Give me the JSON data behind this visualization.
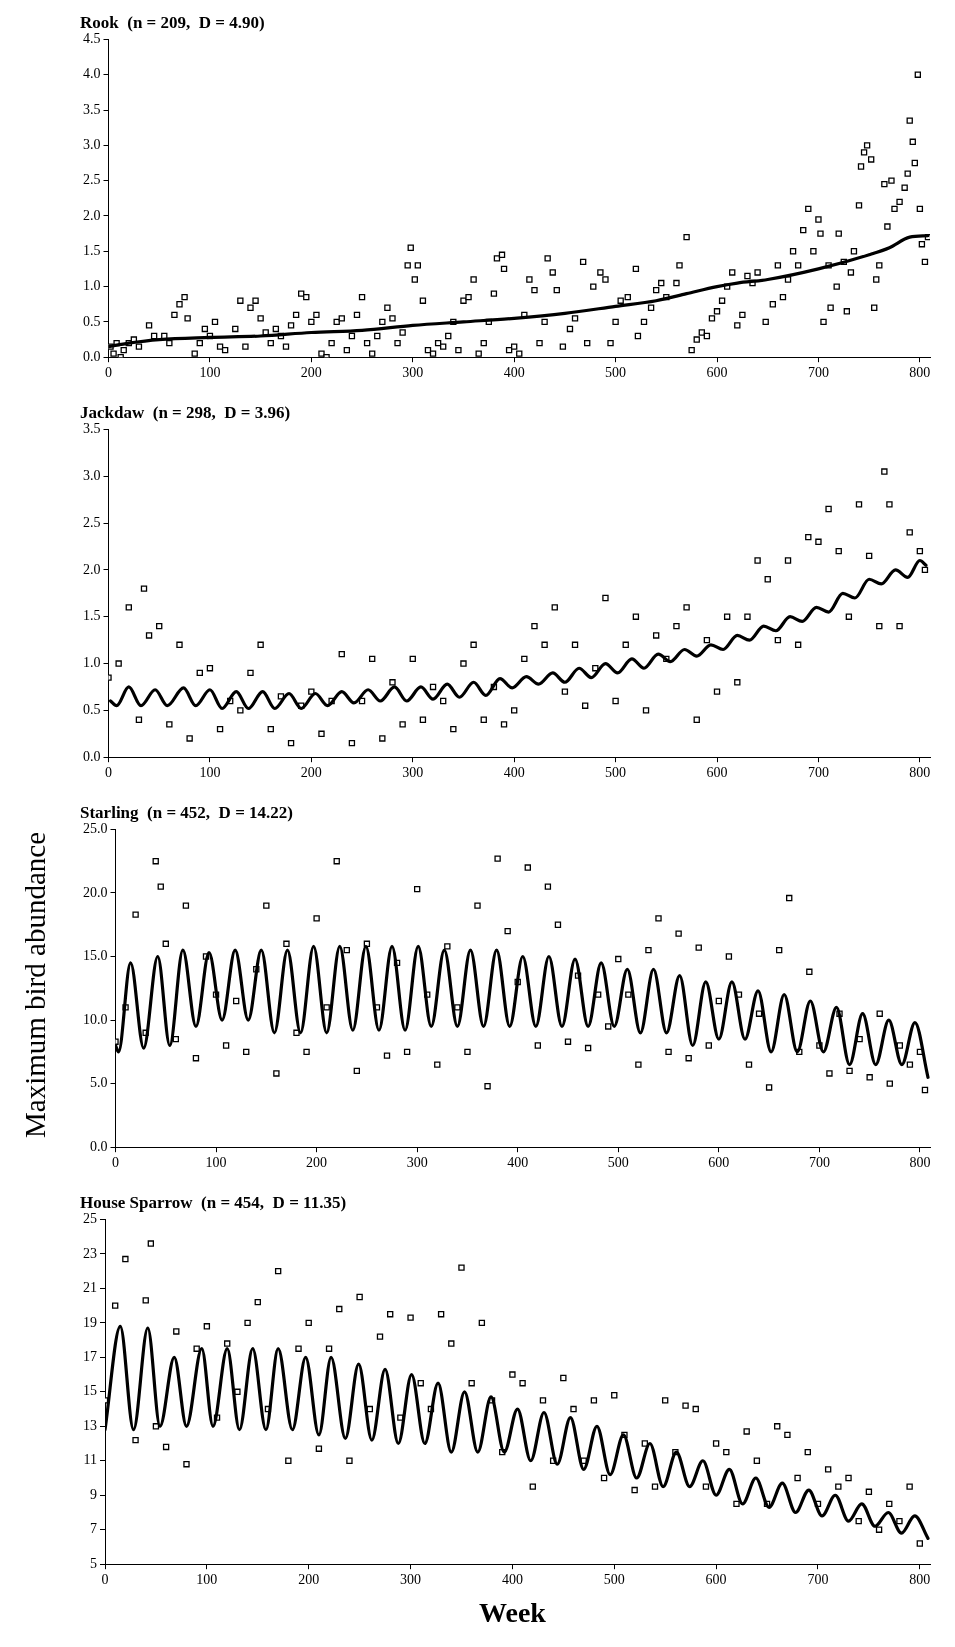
{
  "chart_data": [
    {
      "type": "scatter",
      "title": "Rook  (n = 209,  D = 4.90)",
      "marker": "square",
      "grid": false,
      "legend": false,
      "xlim": [
        0,
        810
      ],
      "xticks": [
        0,
        100,
        200,
        300,
        400,
        500,
        600,
        700,
        800
      ],
      "ylim": [
        0,
        4.5
      ],
      "yticks": [
        {
          "value": 0,
          "label": "0.0"
        },
        {
          "value": 0.5,
          "label": "0.5"
        },
        {
          "value": 1,
          "label": "1.0"
        },
        {
          "value": 1.5,
          "label": "1.5"
        },
        {
          "value": 2,
          "label": "2.0"
        },
        {
          "value": 2.5,
          "label": "2.5"
        },
        {
          "value": 3,
          "label": "3.0"
        },
        {
          "value": 3.5,
          "label": "3.5"
        },
        {
          "value": 4,
          "label": "4.0"
        },
        {
          "value": 4.5,
          "label": "4.5"
        }
      ],
      "series": [
        {
          "type": "scatter",
          "color": "#000000",
          "x": [
            2,
            5,
            8,
            12,
            15,
            20,
            25,
            30,
            40,
            45,
            55,
            60,
            65,
            70,
            75,
            78,
            85,
            90,
            95,
            100,
            105,
            110,
            115,
            125,
            130,
            135,
            140,
            145,
            150,
            155,
            160,
            165,
            170,
            175,
            180,
            185,
            190,
            195,
            200,
            205,
            210,
            215,
            220,
            225,
            230,
            235,
            240,
            245,
            250,
            255,
            260,
            265,
            270,
            275,
            280,
            285,
            290,
            295,
            298,
            302,
            305,
            310,
            315,
            320,
            325,
            330,
            335,
            340,
            345,
            350,
            355,
            360,
            365,
            370,
            375,
            380,
            383,
            388,
            390,
            395,
            400,
            405,
            410,
            415,
            420,
            425,
            430,
            433,
            438,
            442,
            448,
            455,
            460,
            468,
            472,
            478,
            485,
            490,
            495,
            500,
            505,
            512,
            520,
            522,
            528,
            535,
            540,
            545,
            550,
            560,
            563,
            570,
            575,
            580,
            585,
            590,
            595,
            600,
            605,
            610,
            615,
            620,
            625,
            630,
            635,
            640,
            648,
            655,
            660,
            665,
            670,
            675,
            680,
            685,
            690,
            695,
            700,
            702,
            705,
            710,
            712,
            718,
            720,
            725,
            728,
            732,
            735,
            740,
            742,
            745,
            748,
            752,
            755,
            757,
            760,
            765,
            768,
            772,
            775,
            780,
            785,
            788,
            790,
            793,
            795,
            798,
            800,
            802,
            805,
            808
          ],
          "values": [
            0.15,
            0.05,
            0.2,
            0.0,
            0.1,
            0.2,
            0.25,
            0.15,
            0.45,
            0.3,
            0.3,
            0.2,
            0.6,
            0.75,
            0.85,
            0.55,
            0.05,
            0.2,
            0.4,
            0.3,
            0.5,
            0.15,
            0.1,
            0.4,
            0.8,
            0.15,
            0.7,
            0.8,
            0.55,
            0.35,
            0.2,
            0.4,
            0.3,
            0.15,
            0.45,
            0.6,
            0.9,
            0.85,
            0.5,
            0.6,
            0.05,
            0.0,
            0.2,
            0.5,
            0.55,
            0.1,
            0.3,
            0.6,
            0.85,
            0.2,
            0.05,
            0.3,
            0.5,
            0.7,
            0.55,
            0.2,
            0.35,
            1.3,
            1.55,
            1.1,
            1.3,
            0.8,
            0.1,
            0.05,
            0.2,
            0.15,
            0.3,
            0.5,
            0.1,
            0.8,
            0.85,
            1.1,
            0.05,
            0.2,
            0.5,
            0.9,
            1.4,
            1.45,
            1.25,
            0.1,
            0.15,
            0.05,
            0.6,
            1.1,
            0.95,
            0.2,
            0.5,
            1.4,
            1.2,
            0.95,
            0.15,
            0.4,
            0.55,
            1.35,
            0.2,
            1.0,
            1.2,
            1.1,
            0.2,
            0.5,
            0.8,
            0.85,
            1.25,
            0.3,
            0.5,
            0.7,
            0.95,
            1.05,
            0.85,
            1.05,
            1.3,
            1.7,
            0.1,
            0.25,
            0.35,
            0.3,
            0.55,
            0.65,
            0.8,
            1.0,
            1.2,
            0.45,
            0.6,
            1.15,
            1.05,
            1.2,
            0.5,
            0.75,
            1.3,
            0.85,
            1.1,
            1.5,
            1.3,
            1.8,
            2.1,
            1.5,
            1.95,
            1.75,
            0.5,
            1.3,
            0.7,
            1.0,
            1.75,
            1.35,
            0.65,
            1.2,
            1.5,
            2.15,
            2.7,
            2.9,
            3.0,
            2.8,
            0.7,
            1.1,
            1.3,
            2.45,
            1.85,
            2.5,
            2.1,
            2.2,
            2.4,
            2.6,
            3.35,
            3.05,
            2.75,
            4.0,
            2.1,
            1.6,
            1.35,
            1.7
          ]
        },
        {
          "type": "line",
          "marker": "none",
          "color": "#000000",
          "x": [
            0,
            20,
            50,
            100,
            150,
            200,
            250,
            300,
            350,
            400,
            450,
            500,
            540,
            570,
            600,
            620,
            650,
            700,
            750,
            770,
            790,
            808
          ],
          "values": [
            0.15,
            0.2,
            0.25,
            0.28,
            0.3,
            0.35,
            0.38,
            0.45,
            0.5,
            0.55,
            0.62,
            0.72,
            0.8,
            0.9,
            1.0,
            1.05,
            1.1,
            1.25,
            1.45,
            1.55,
            1.7,
            1.72
          ]
        }
      ]
    },
    {
      "type": "scatter",
      "title": "Jackdaw  (n = 298,  D = 3.96)",
      "marker": "square",
      "grid": false,
      "legend": false,
      "xlim": [
        0,
        810
      ],
      "xticks": [
        0,
        100,
        200,
        300,
        400,
        500,
        600,
        700,
        800
      ],
      "ylim": [
        0,
        3.5
      ],
      "yticks": [
        {
          "value": 0,
          "label": "0.0"
        },
        {
          "value": 0.5,
          "label": "0.5"
        },
        {
          "value": 1,
          "label": "1.0"
        },
        {
          "value": 1.5,
          "label": "1.5"
        },
        {
          "value": 2,
          "label": "2.0"
        },
        {
          "value": 2.5,
          "label": "2.5"
        },
        {
          "value": 3,
          "label": "3.0"
        },
        {
          "value": 3.5,
          "label": "3.5"
        }
      ],
      "series": [
        {
          "type": "scatter",
          "color": "#000000",
          "x": [
            0,
            10,
            20,
            30,
            40,
            50,
            60,
            70,
            80,
            90,
            100,
            110,
            120,
            130,
            140,
            150,
            160,
            170,
            180,
            190,
            200,
            210,
            220,
            230,
            240,
            250,
            260,
            270,
            280,
            290,
            300,
            310,
            320,
            330,
            340,
            350,
            360,
            370,
            380,
            390,
            400,
            410,
            420,
            430,
            440,
            450,
            460,
            470,
            480,
            490,
            500,
            510,
            520,
            530,
            540,
            550,
            560,
            570,
            580,
            590,
            600,
            610,
            620,
            630,
            640,
            650,
            660,
            670,
            680,
            690,
            700,
            710,
            720,
            730,
            740,
            750,
            760,
            770,
            780,
            790,
            800,
            765,
            35,
            805
          ],
          "values": [
            0.85,
            1.0,
            1.6,
            0.4,
            1.3,
            1.4,
            0.35,
            1.2,
            0.2,
            0.9,
            0.95,
            0.3,
            0.6,
            0.5,
            0.9,
            1.2,
            0.3,
            0.65,
            0.15,
            0.55,
            0.7,
            0.25,
            0.6,
            1.1,
            0.15,
            0.6,
            1.05,
            0.2,
            0.8,
            0.35,
            1.05,
            0.4,
            0.75,
            0.6,
            0.3,
            1.0,
            1.2,
            0.4,
            0.75,
            0.35,
            0.5,
            1.05,
            1.4,
            1.2,
            1.6,
            0.7,
            1.2,
            0.55,
            0.95,
            1.7,
            0.6,
            1.2,
            1.5,
            0.5,
            1.3,
            1.05,
            1.4,
            1.6,
            0.4,
            1.25,
            0.7,
            1.5,
            0.8,
            1.5,
            2.1,
            1.9,
            1.25,
            2.1,
            1.2,
            2.35,
            2.3,
            2.65,
            2.2,
            1.5,
            2.7,
            2.15,
            1.4,
            2.7,
            1.4,
            2.4,
            2.2,
            3.05,
            1.8,
            2.0
          ]
        },
        {
          "type": "line",
          "marker": "none",
          "color": "#000000",
          "x": [
            2,
            8,
            20,
            32,
            46,
            58,
            74,
            86,
            100,
            112,
            126,
            138,
            152,
            164,
            178,
            190,
            204,
            216,
            230,
            242,
            256,
            268,
            282,
            294,
            308,
            320,
            334,
            346,
            360,
            372,
            386,
            398,
            412,
            424,
            438,
            450,
            464,
            476,
            490,
            502,
            516,
            528,
            542,
            554,
            568,
            580,
            594,
            606,
            620,
            632,
            646,
            658,
            672,
            684,
            698,
            710,
            724,
            736,
            750,
            762,
            776,
            788,
            800,
            806
          ],
          "values": [
            0.6,
            0.55,
            0.75,
            0.55,
            0.72,
            0.55,
            0.74,
            0.55,
            0.72,
            0.52,
            0.7,
            0.52,
            0.7,
            0.52,
            0.68,
            0.52,
            0.68,
            0.55,
            0.7,
            0.58,
            0.72,
            0.6,
            0.75,
            0.6,
            0.75,
            0.62,
            0.78,
            0.64,
            0.8,
            0.66,
            0.84,
            0.74,
            0.86,
            0.78,
            0.9,
            0.8,
            0.95,
            0.85,
            1.0,
            0.9,
            1.05,
            0.95,
            1.1,
            1.02,
            1.15,
            1.08,
            1.2,
            1.15,
            1.3,
            1.25,
            1.4,
            1.35,
            1.5,
            1.45,
            1.6,
            1.55,
            1.75,
            1.7,
            1.9,
            1.85,
            2.0,
            1.92,
            2.1,
            2.05
          ]
        }
      ]
    },
    {
      "type": "scatter",
      "title": "Starling  (n = 452,  D = 14.22)",
      "ylabel": "Maximum bird abundance",
      "marker": "square",
      "grid": false,
      "legend": false,
      "xlim": [
        0,
        810
      ],
      "xticks": [
        0,
        100,
        200,
        300,
        400,
        500,
        600,
        700,
        800
      ],
      "ylim": [
        0,
        25
      ],
      "yticks": [
        {
          "value": 0,
          "label": "0.0"
        },
        {
          "value": 5,
          "label": "5.0"
        },
        {
          "value": 10,
          "label": "10.0"
        },
        {
          "value": 15,
          "label": "15.0"
        },
        {
          "value": 20,
          "label": "20.0"
        },
        {
          "value": 25,
          "label": "25.0"
        }
      ],
      "series": [
        {
          "type": "scatter",
          "color": "#000000",
          "x": [
            0,
            10,
            20,
            30,
            40,
            50,
            60,
            70,
            80,
            90,
            100,
            110,
            120,
            130,
            140,
            150,
            160,
            170,
            180,
            190,
            200,
            210,
            220,
            230,
            240,
            250,
            260,
            270,
            280,
            290,
            300,
            310,
            320,
            330,
            340,
            350,
            360,
            370,
            380,
            390,
            400,
            410,
            420,
            430,
            440,
            450,
            460,
            470,
            480,
            490,
            500,
            510,
            520,
            530,
            540,
            550,
            560,
            570,
            580,
            590,
            600,
            610,
            620,
            630,
            640,
            650,
            660,
            670,
            680,
            690,
            700,
            710,
            720,
            730,
            740,
            750,
            760,
            770,
            780,
            790,
            800,
            805,
            45
          ],
          "values": [
            8.3,
            11,
            18.3,
            9,
            22.5,
            16,
            8.5,
            19,
            7,
            15,
            12,
            8,
            11.5,
            7.5,
            14,
            19,
            5.8,
            16,
            9,
            7.5,
            18,
            11,
            22.5,
            15.5,
            6,
            16,
            11,
            7.2,
            14.5,
            7.5,
            20.3,
            12,
            6.5,
            15.8,
            11,
            7.5,
            19,
            4.8,
            22.7,
            17,
            13,
            22,
            8,
            20.5,
            17.5,
            8.3,
            13.5,
            7.8,
            12,
            9.5,
            14.8,
            12,
            6.5,
            15.5,
            18,
            7.5,
            16.8,
            7,
            15.7,
            8,
            11.5,
            15,
            12,
            6.5,
            10.5,
            4.7,
            15.5,
            19.6,
            7.5,
            13.8,
            8,
            5.8,
            10.5,
            6,
            8.5,
            5.5,
            10.5,
            5,
            8,
            6.5,
            7.5,
            4.5,
            20.5
          ]
        },
        {
          "type": "line",
          "marker": "none",
          "color": "#000000",
          "x": [
            0,
            3,
            15,
            28,
            42,
            54,
            67,
            80,
            93,
            106,
            119,
            132,
            145,
            158,
            171,
            184,
            197,
            210,
            223,
            236,
            249,
            262,
            275,
            288,
            301,
            314,
            327,
            340,
            353,
            366,
            379,
            392,
            405,
            418,
            431,
            444,
            457,
            470,
            483,
            496,
            509,
            522,
            535,
            548,
            561,
            574,
            587,
            600,
            613,
            626,
            639,
            652,
            665,
            678,
            691,
            704,
            717,
            730,
            743,
            756,
            769,
            782,
            795,
            808
          ],
          "values": [
            8,
            7.5,
            14.5,
            7.8,
            15,
            8,
            15.5,
            9.5,
            15.3,
            10,
            15.5,
            10,
            15.5,
            9,
            15.5,
            9,
            15.8,
            9,
            15.8,
            9.2,
            15.8,
            9.2,
            15.8,
            9.2,
            15.8,
            9.5,
            15.5,
            9.5,
            15.5,
            9.5,
            15.5,
            9.5,
            15,
            9.5,
            15,
            9.5,
            14.8,
            9.5,
            14.5,
            9.5,
            14,
            9,
            14,
            9,
            13.5,
            8,
            13,
            8.5,
            13,
            8.5,
            12.3,
            7.5,
            12,
            7.5,
            11.5,
            7.5,
            11,
            6.5,
            10.5,
            6.5,
            10,
            6.5,
            9.8,
            5.5
          ]
        }
      ]
    },
    {
      "type": "scatter",
      "title": "House Sparrow  (n = 454,  D = 11.35)",
      "xlabel": "Week",
      "marker": "square",
      "grid": false,
      "legend": false,
      "xlim": [
        0,
        810
      ],
      "xticks": [
        0,
        100,
        200,
        300,
        400,
        500,
        600,
        700,
        800
      ],
      "ylim": [
        5,
        25
      ],
      "yticks": [
        5,
        7,
        9,
        11,
        13,
        15,
        17,
        19,
        21,
        23,
        25
      ],
      "series": [
        {
          "type": "scatter",
          "color": "#000000",
          "x": [
            0,
            10,
            20,
            30,
            40,
            50,
            60,
            70,
            80,
            90,
            100,
            110,
            120,
            130,
            140,
            150,
            160,
            170,
            180,
            190,
            200,
            210,
            220,
            230,
            240,
            250,
            260,
            270,
            280,
            290,
            300,
            310,
            320,
            330,
            340,
            350,
            360,
            370,
            380,
            390,
            400,
            410,
            420,
            430,
            440,
            450,
            460,
            470,
            480,
            490,
            500,
            510,
            520,
            530,
            540,
            550,
            560,
            570,
            580,
            590,
            600,
            610,
            620,
            630,
            640,
            650,
            660,
            670,
            680,
            690,
            700,
            710,
            720,
            730,
            740,
            750,
            760,
            770,
            780,
            790,
            800,
            45
          ],
          "values": [
            14.5,
            20,
            22.7,
            12.2,
            20.3,
            13,
            11.8,
            18.5,
            10.8,
            17.5,
            18.8,
            13.5,
            17.8,
            15,
            19,
            20.2,
            14,
            22,
            11,
            17.5,
            19,
            11.7,
            17.5,
            19.8,
            11,
            20.5,
            14,
            18.2,
            19.5,
            13.5,
            19.3,
            15.5,
            14,
            19.5,
            17.8,
            22.2,
            15.5,
            19,
            14.5,
            11.5,
            16,
            15.5,
            9.5,
            14.5,
            11,
            15.8,
            14,
            11,
            14.5,
            10,
            14.8,
            12.5,
            9.3,
            12,
            9.5,
            14.5,
            11.5,
            14.2,
            14,
            9.5,
            12,
            11.5,
            8.5,
            12.7,
            11,
            8.5,
            13,
            12.5,
            10,
            11.5,
            8.5,
            10.5,
            9.5,
            10,
            7.5,
            9.2,
            7,
            8.5,
            7.5,
            9.5,
            6.2,
            23.6
          ]
        },
        {
          "type": "line",
          "marker": "none",
          "color": "#000000",
          "x": [
            0,
            15,
            28,
            42,
            54,
            68,
            80,
            95,
            106,
            120,
            132,
            145,
            158,
            170,
            184,
            197,
            210,
            222,
            236,
            249,
            262,
            275,
            288,
            301,
            314,
            327,
            340,
            353,
            366,
            379,
            392,
            405,
            418,
            431,
            444,
            457,
            470,
            483,
            496,
            509,
            522,
            535,
            548,
            561,
            574,
            587,
            600,
            613,
            626,
            639,
            652,
            665,
            678,
            691,
            704,
            717,
            730,
            743,
            756,
            769,
            782,
            795,
            808
          ],
          "values": [
            12.8,
            18.8,
            12.8,
            18.7,
            13,
            17,
            13,
            17.5,
            13,
            17.5,
            12.8,
            17.5,
            12.8,
            17.5,
            12.8,
            17,
            12.5,
            17,
            12.3,
            16.6,
            12.2,
            16.3,
            12,
            16,
            12,
            15.5,
            11.5,
            15,
            11.5,
            14.7,
            11.5,
            14,
            11,
            13.8,
            10.8,
            13.5,
            10.5,
            13,
            10.2,
            12.5,
            10,
            12,
            9.5,
            11.5,
            9.5,
            11,
            9,
            10.5,
            8.5,
            10,
            8.3,
            9.7,
            8,
            9.3,
            7.8,
            9,
            7.5,
            8.5,
            7.2,
            8,
            6.8,
            7.8,
            6.5
          ]
        }
      ]
    }
  ]
}
